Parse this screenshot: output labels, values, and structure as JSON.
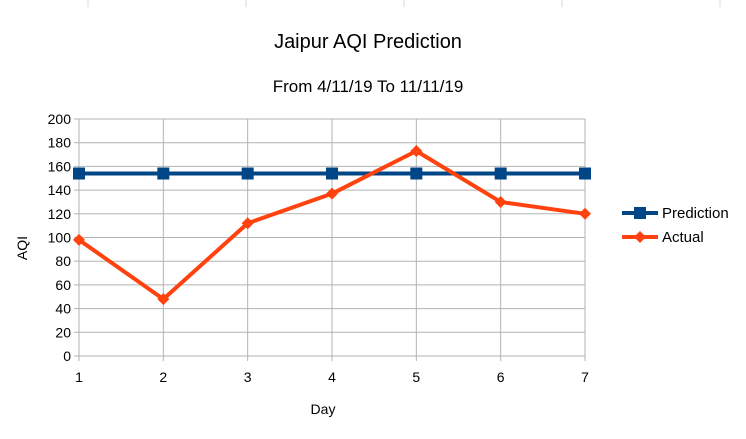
{
  "chart_data": {
    "type": "line",
    "title": "Jaipur AQI Prediction",
    "subtitle": "From 4/11/19 To 11/11/19",
    "xlabel": "Day",
    "ylabel": "AQI",
    "x": [
      1,
      2,
      3,
      4,
      5,
      6,
      7
    ],
    "ylim": [
      0,
      200
    ],
    "yticks": [
      0,
      20,
      40,
      60,
      80,
      100,
      120,
      140,
      160,
      180,
      200
    ],
    "grid": true,
    "legend_position": "right",
    "series": [
      {
        "name": "Prediction",
        "values": [
          154,
          154,
          154,
          154,
          154,
          154,
          154
        ],
        "color": "#004586",
        "marker": "square"
      },
      {
        "name": "Actual",
        "values": [
          98,
          48,
          112,
          137,
          173,
          130,
          120
        ],
        "color": "#ff420e",
        "marker": "diamond"
      }
    ]
  }
}
